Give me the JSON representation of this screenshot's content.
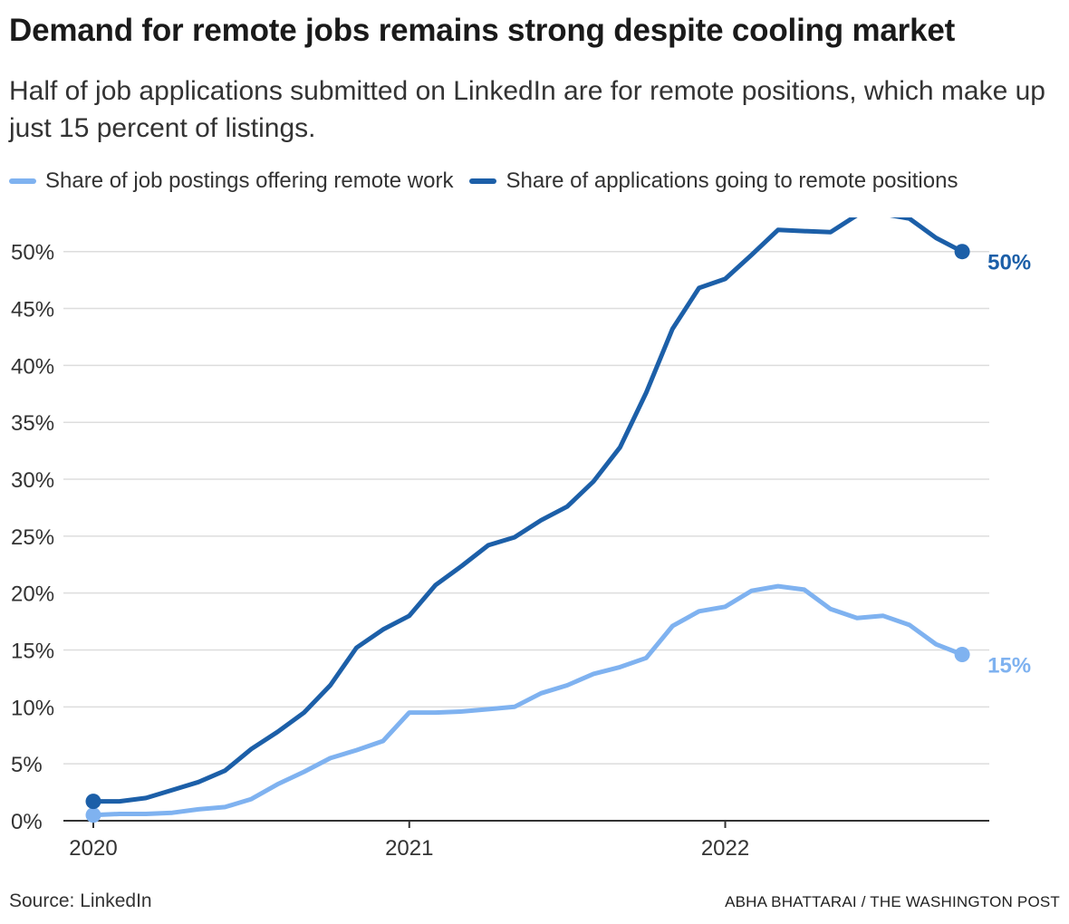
{
  "title": "Demand for remote jobs remains strong despite cooling market",
  "subtitle": "Half of job applications submitted on LinkedIn are for remote positions, which make up just 15 percent of listings.",
  "source": "Source: LinkedIn",
  "credit": "ABHA BHATTARAI / THE WASHINGTON POST",
  "colors": {
    "postings": "#7fb2f0",
    "applications": "#1c5fa8",
    "grid": "#dddddd",
    "axis": "#333333"
  },
  "chart_data": {
    "type": "line",
    "x_unit": "year",
    "xlim": [
      2020,
      2022.83
    ],
    "ylim": [
      0,
      53
    ],
    "yticks": [
      0,
      5,
      10,
      15,
      20,
      25,
      30,
      35,
      40,
      45,
      50
    ],
    "ytick_labels": [
      "0%",
      "5%",
      "10%",
      "15%",
      "20%",
      "25%",
      "30%",
      "35%",
      "40%",
      "45%",
      "50%"
    ],
    "xticks": [
      2020,
      2021,
      2022
    ],
    "xtick_labels": [
      "2020",
      "2021",
      "2022"
    ],
    "grid": true,
    "legend": "top",
    "series": [
      {
        "name": "Share of job postings offering remote work",
        "color": "#7fb2f0",
        "end_label": "15%",
        "x": [
          2020,
          2020.083,
          2020.167,
          2020.25,
          2020.333,
          2020.417,
          2020.5,
          2020.583,
          2020.667,
          2020.75,
          2020.833,
          2020.917,
          2021,
          2021.083,
          2021.167,
          2021.25,
          2021.333,
          2021.417,
          2021.5,
          2021.583,
          2021.667,
          2021.75,
          2021.833,
          2021.917,
          2022,
          2022.083,
          2022.167,
          2022.25,
          2022.333,
          2022.417,
          2022.5,
          2022.583,
          2022.667,
          2022.75
        ],
        "y": [
          0.5,
          0.6,
          0.6,
          0.7,
          1.0,
          1.2,
          1.9,
          3.2,
          4.3,
          5.5,
          6.2,
          7.0,
          9.5,
          9.5,
          9.6,
          9.8,
          10.0,
          11.2,
          11.9,
          12.9,
          13.5,
          14.3,
          17.1,
          18.4,
          18.8,
          20.2,
          20.6,
          20.3,
          18.6,
          17.8,
          18.0,
          17.2,
          15.5,
          14.6
        ]
      },
      {
        "name": "Share of applications going to remote positions",
        "color": "#1c5fa8",
        "end_label": "50%",
        "x": [
          2020,
          2020.083,
          2020.167,
          2020.25,
          2020.333,
          2020.417,
          2020.5,
          2020.583,
          2020.667,
          2020.75,
          2020.833,
          2020.917,
          2021,
          2021.083,
          2021.167,
          2021.25,
          2021.333,
          2021.417,
          2021.5,
          2021.583,
          2021.667,
          2021.75,
          2021.833,
          2021.917,
          2022,
          2022.083,
          2022.167,
          2022.25,
          2022.333,
          2022.417,
          2022.5,
          2022.583,
          2022.667,
          2022.75
        ],
        "y": [
          1.7,
          1.7,
          2.0,
          2.7,
          3.4,
          4.4,
          6.3,
          7.8,
          9.5,
          11.9,
          15.2,
          16.8,
          18.0,
          20.7,
          22.4,
          24.2,
          24.9,
          26.4,
          27.6,
          29.8,
          32.8,
          37.6,
          43.2,
          46.8,
          47.6,
          49.7,
          51.9,
          51.8,
          51.7,
          53.2,
          53.3,
          52.9,
          51.2,
          50.0
        ]
      }
    ]
  }
}
